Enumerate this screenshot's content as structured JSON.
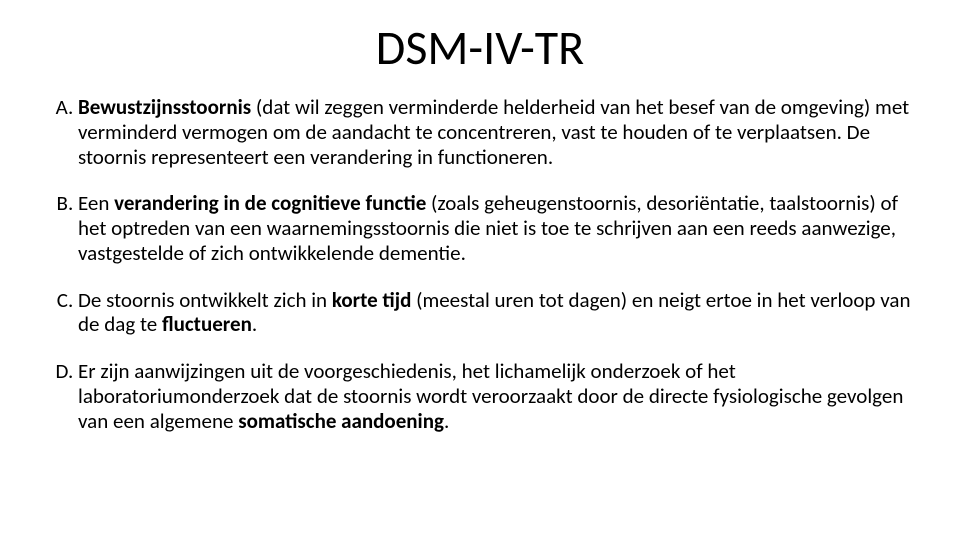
{
  "title": "DSM-IV-TR",
  "criteria": [
    {
      "prefix": "",
      "bold1": "Bewustzijnsstoornis",
      "mid1": " (dat wil zeggen verminderde helderheid van het besef van de omgeving) met verminderd vermogen om de aandacht te concentreren, vast te houden of te verplaatsen. De stoornis representeert een verandering in functioneren.",
      "bold2": "",
      "mid2": "",
      "bold3": "",
      "mid3": "",
      "bold4": "",
      "tail": ""
    },
    {
      "prefix": "Een ",
      "bold1": "verandering in de cognitieve functie",
      "mid1": " (zoals geheugenstoornis, desoriëntatie, taalstoornis) of het optreden van een waarnemingsstoornis die niet is toe te schrijven aan een reeds aanwezige, vastgestelde of zich ontwikkelende dementie.",
      "bold2": "",
      "mid2": "",
      "bold3": "",
      "mid3": "",
      "bold4": "",
      "tail": ""
    },
    {
      "prefix": "De stoornis ontwikkelt zich in ",
      "bold1": "korte tijd",
      "mid1": " (meestal uren tot dagen) en neigt ertoe in het verloop van de dag te ",
      "bold2": "fluctueren",
      "mid2": ".",
      "bold3": "",
      "mid3": "",
      "bold4": "",
      "tail": ""
    },
    {
      "prefix": "Er zijn aanwijzingen uit de voorgeschiedenis, het lichamelijk onderzoek of het laboratoriumonderzoek dat de stoornis wordt veroorzaakt door de directe fysiologische gevolgen van een algemene ",
      "bold1": "somatische aandoening",
      "mid1": ".",
      "bold2": "",
      "mid2": "",
      "bold3": "",
      "mid3": "",
      "bold4": "",
      "tail": ""
    }
  ]
}
